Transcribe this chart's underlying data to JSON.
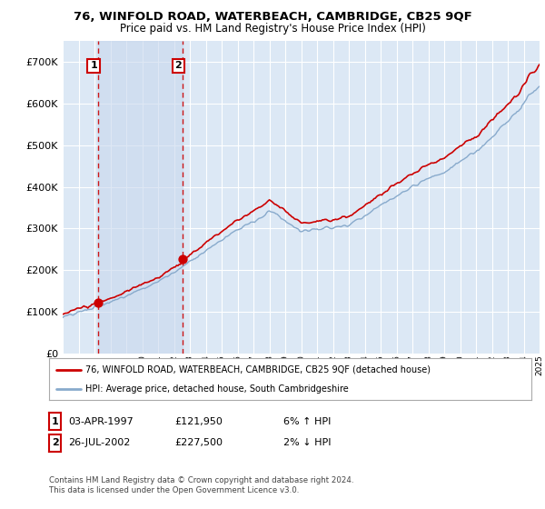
{
  "title": "76, WINFOLD ROAD, WATERBEACH, CAMBRIDGE, CB25 9QF",
  "subtitle": "Price paid vs. HM Land Registry's House Price Index (HPI)",
  "background_color": "#ffffff",
  "plot_bg_color": "#dce8f5",
  "grid_color": "#ffffff",
  "ylim": [
    0,
    750000
  ],
  "yticks": [
    0,
    100000,
    200000,
    300000,
    400000,
    500000,
    600000,
    700000
  ],
  "ytick_labels": [
    "£0",
    "£100K",
    "£200K",
    "£300K",
    "£400K",
    "£500K",
    "£600K",
    "£700K"
  ],
  "x_start_year": 1995,
  "x_end_year": 2025,
  "sale1_year": 1997.25,
  "sale1_price": 121950,
  "sale2_year": 2002.57,
  "sale2_price": 227500,
  "sale1_label": "1",
  "sale2_label": "2",
  "red_line_color": "#cc0000",
  "blue_line_color": "#88aacc",
  "dashed_vline_color": "#cc0000",
  "dot_color": "#cc0000",
  "span_color": "#c8d8ee",
  "legend_label_red": "76, WINFOLD ROAD, WATERBEACH, CAMBRIDGE, CB25 9QF (detached house)",
  "legend_label_blue": "HPI: Average price, detached house, South Cambridgeshire",
  "table_rows": [
    {
      "num": "1",
      "date": "03-APR-1997",
      "price": "£121,950",
      "hpi": "6% ↑ HPI"
    },
    {
      "num": "2",
      "date": "26-JUL-2002",
      "price": "£227,500",
      "hpi": "2% ↓ HPI"
    }
  ],
  "footer": "Contains HM Land Registry data © Crown copyright and database right 2024.\nThis data is licensed under the Open Government Licence v3.0."
}
